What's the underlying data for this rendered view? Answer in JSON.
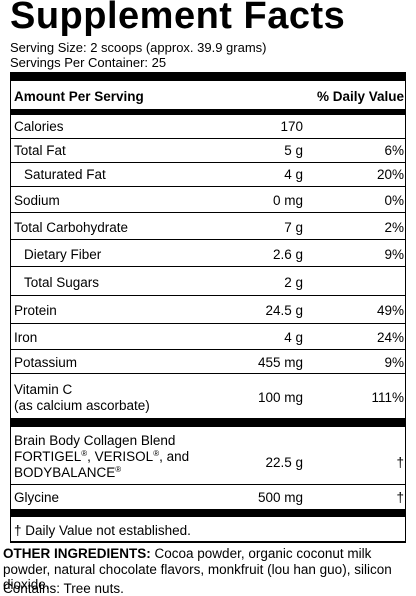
{
  "title": "Supplement Facts",
  "serving_size": "Serving Size: 2 scoops (approx. 39.9 grams)",
  "servings_per_container": "Servings Per Container: 25",
  "header": {
    "amount": "Amount Per Serving",
    "dv": "% Daily Value"
  },
  "rows": [
    {
      "name": "Calories",
      "amount": "170",
      "dv": ""
    },
    {
      "name": "Total Fat",
      "amount": "5 g",
      "dv": "6%"
    },
    {
      "name": "Saturated Fat",
      "amount": "4 g",
      "dv": "20%"
    },
    {
      "name": "Sodium",
      "amount": "0 mg",
      "dv": "0%"
    },
    {
      "name": "Total Carbohydrate",
      "amount": "7 g",
      "dv": "2%"
    },
    {
      "name": "Dietary Fiber",
      "amount": "2.6 g",
      "dv": "9%"
    },
    {
      "name": "Total Sugars",
      "amount": "2 g",
      "dv": ""
    },
    {
      "name": "Protein",
      "amount": "24.5 g",
      "dv": "49%"
    },
    {
      "name": "Iron",
      "amount": "4 g",
      "dv": "24%"
    },
    {
      "name": "Potassium",
      "amount": "455 mg",
      "dv": "9%"
    }
  ],
  "vitamin_c": {
    "name_line1": "Vitamin C",
    "name_line2": "(as calcium ascorbate)",
    "amount": "100 mg",
    "dv": "111%"
  },
  "blend": {
    "line1": "Brain Body Collagen Blend",
    "line2_a": "FORTIGEL",
    "line2_b": ", VERISOL",
    "line2_c": ", and",
    "line3": "BODYBALANCE",
    "reg": "®",
    "amount": "22.5 g",
    "dv": "†"
  },
  "glycine": {
    "name": "Glycine",
    "amount": "500 mg",
    "dv": "†"
  },
  "footnote": "† Daily Value not established.",
  "other_ingredients": {
    "label": "OTHER INGREDIENTS:",
    "text": " Cocoa powder, organic coconut milk powder, natural chocolate flavors, monkfruit (lou han guo), silicon dioxide."
  },
  "contains": "Contains: Tree nuts."
}
